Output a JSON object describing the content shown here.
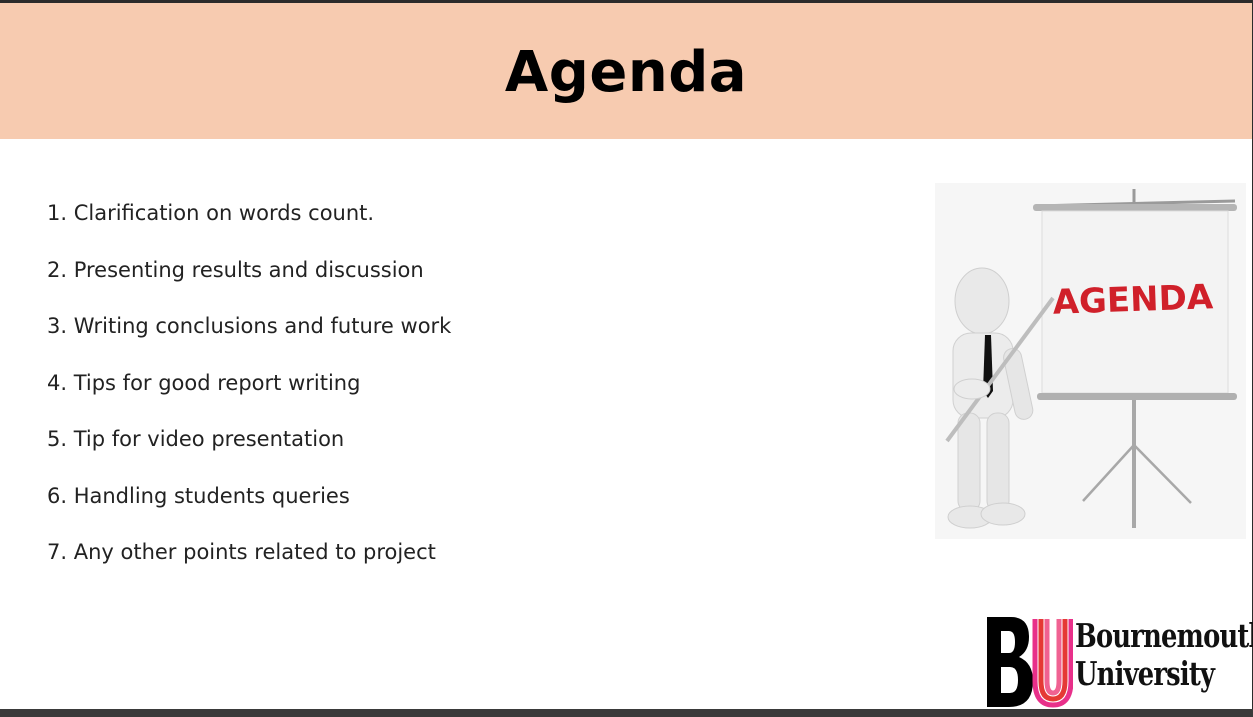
{
  "slide": {
    "title": "Agenda",
    "items": [
      "1. Clarification on words count.",
      "2. Presenting results and discussion",
      "3. Writing conclusions and future work",
      "4. Tips for good report writing",
      "5. Tip for video presentation",
      "6. Handling students queries",
      "7. Any other points related to project"
    ],
    "illustration": {
      "board_text": "AGENDA"
    },
    "logo": {
      "letters": "BU",
      "line1": "Bournemouth",
      "line2": "University"
    }
  },
  "colors": {
    "header_bg": "#f7cbb0",
    "board_text": "#d0202a",
    "logo_pink": "#e8308a",
    "logo_red": "#e53935"
  }
}
